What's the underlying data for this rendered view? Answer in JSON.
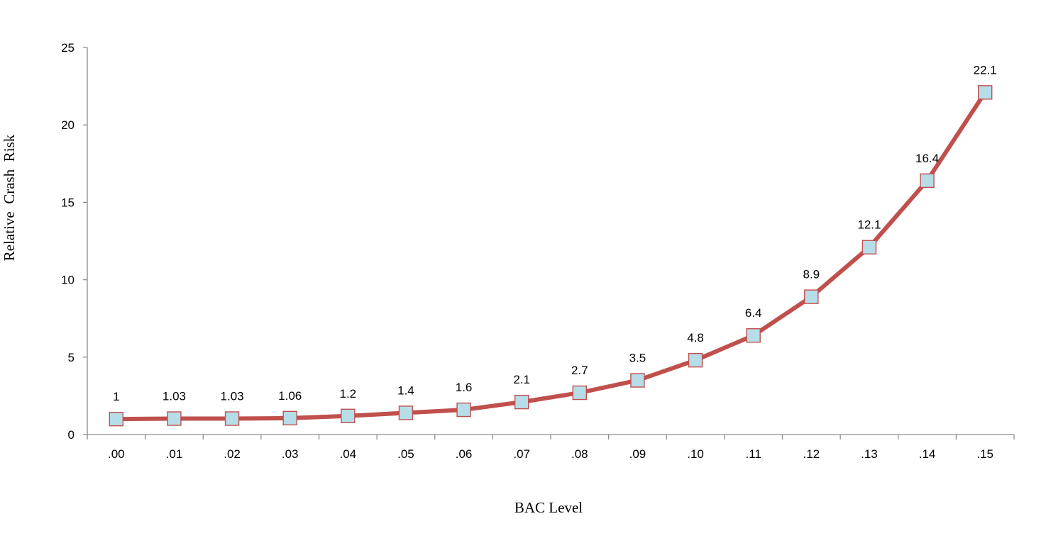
{
  "chart_data": {
    "type": "line",
    "title": "",
    "xlabel": "BAC Level",
    "ylabel": "Relative  Crash  Risk",
    "categories": [
      ".00",
      ".01",
      ".02",
      ".03",
      ".04",
      ".05",
      ".06",
      ".07",
      ".08",
      ".09",
      ".10",
      ".11",
      ".12",
      ".13",
      ".14",
      ".15"
    ],
    "y_ticks": [
      "0",
      "5",
      "10",
      "15",
      "20",
      "25"
    ],
    "ylim": [
      0,
      25
    ],
    "grid": false,
    "legend": "none",
    "series": [
      {
        "values": [
          1,
          1.03,
          1.03,
          1.06,
          1.2,
          1.4,
          1.6,
          2.1,
          2.7,
          3.5,
          4.8,
          6.4,
          8.9,
          12.1,
          16.4,
          22.1
        ],
        "labels": [
          "1",
          "1.03",
          "1.03",
          "1.06",
          "1.2",
          "1.4",
          "1.6",
          "2.1",
          "2.7",
          "3.5",
          "4.8",
          "6.4",
          "8.9",
          "12.1",
          "16.4",
          "22.1"
        ],
        "line_color": "#c0504d",
        "marker": "square",
        "marker_fill": "#b7dde8",
        "marker_edge": "#c0504d"
      }
    ]
  }
}
